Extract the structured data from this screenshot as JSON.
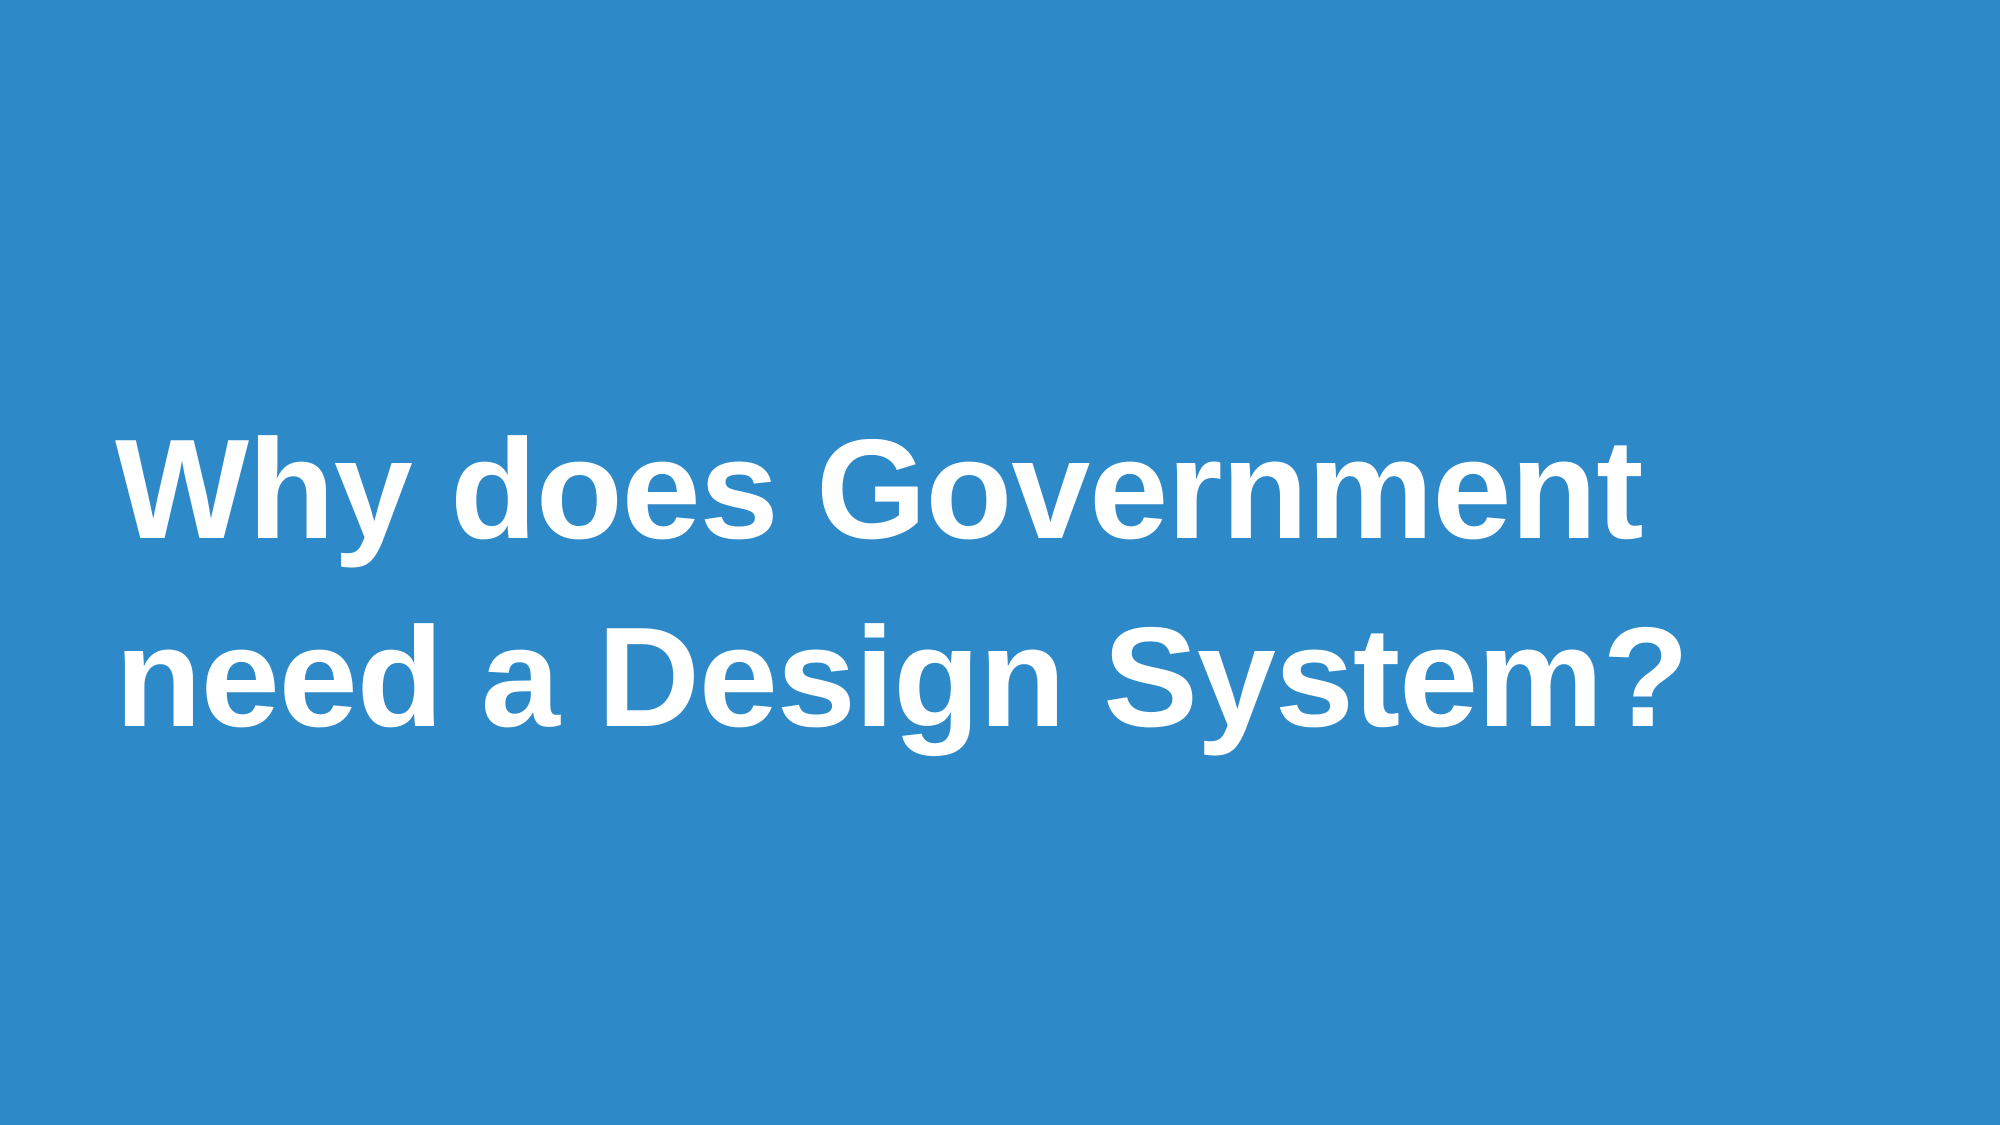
{
  "slide": {
    "background_color": "#2e89c9",
    "text_color": "#ffffff",
    "title_lines": [
      "Why does Government",
      "need a Design System?"
    ]
  }
}
